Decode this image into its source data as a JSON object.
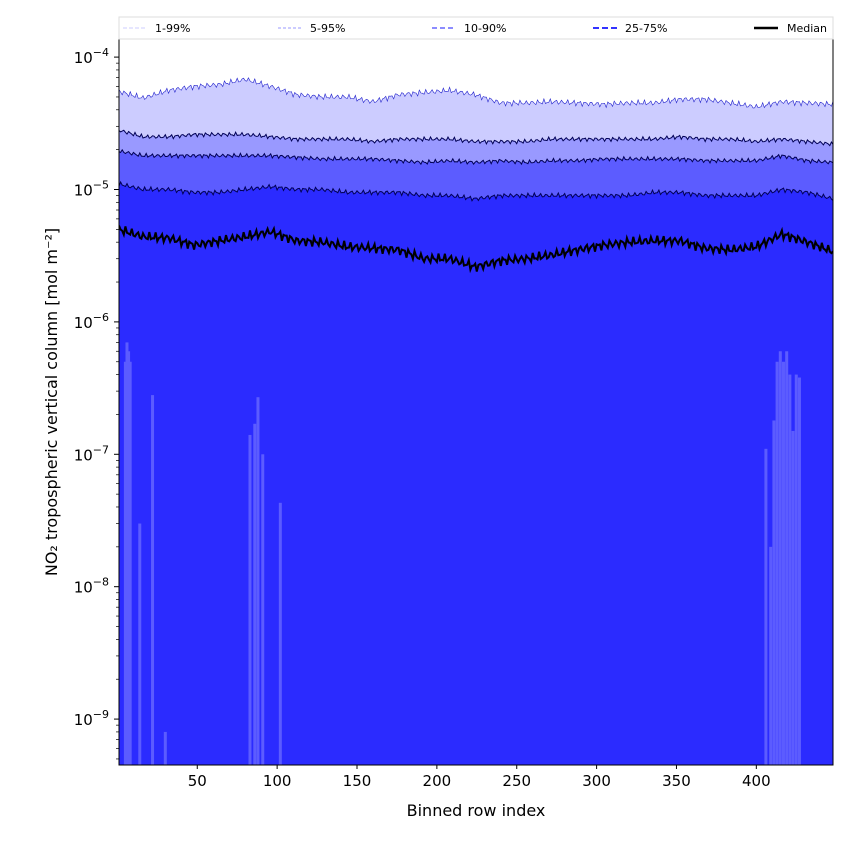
{
  "chart_data": {
    "type": "area",
    "title": "",
    "xlabel": "Binned row index",
    "ylabel": "NO₂ tropospheric vertical column [mol m⁻²]",
    "yscale": "log",
    "xlim": [
      1,
      448
    ],
    "ylim": [
      4.5e-10,
      0.000137
    ],
    "grid": false,
    "legend_placement": "top, above plot",
    "x_ticks": [
      50,
      100,
      150,
      200,
      250,
      300,
      350,
      400
    ],
    "y_ticks": [
      {
        "value": 0.0001,
        "base": "10",
        "exp": "−4"
      },
      {
        "value": 1e-05,
        "base": "10",
        "exp": "−5"
      },
      {
        "value": 1e-06,
        "base": "10",
        "exp": "−6"
      },
      {
        "value": 1e-07,
        "base": "10",
        "exp": "−7"
      },
      {
        "value": 1e-08,
        "base": "10",
        "exp": "−8"
      },
      {
        "value": 1e-09,
        "base": "10",
        "exp": "−9"
      }
    ],
    "legend": [
      {
        "label": "1-99%",
        "color": "#ccccff"
      },
      {
        "label": "5-95%",
        "color": "#9999ff"
      },
      {
        "label": "10-90%",
        "color": "#6666ff"
      },
      {
        "label": "25-75%",
        "color": "#3333ff"
      },
      {
        "label": "Median",
        "color": "#000000"
      }
    ],
    "x": [
      1,
      16,
      32,
      48,
      64,
      80,
      96,
      112,
      128,
      144,
      160,
      176,
      192,
      208,
      224,
      240,
      256,
      272,
      288,
      304,
      320,
      336,
      352,
      368,
      384,
      400,
      416,
      432,
      448
    ],
    "series": [
      {
        "name": "99th percentile",
        "band": "1-99%",
        "fill": "#ccccff",
        "values": [
          5.5e-05,
          4.9e-05,
          5.6e-05,
          6e-05,
          6.2e-05,
          6.8e-05,
          6e-05,
          5.2e-05,
          5e-05,
          5e-05,
          4.6e-05,
          5.2e-05,
          5.4e-05,
          5.6e-05,
          5.2e-05,
          4.5e-05,
          4.5e-05,
          4.6e-05,
          4.5e-05,
          4.4e-05,
          4.5e-05,
          4.5e-05,
          4.8e-05,
          4.8e-05,
          4.5e-05,
          4.2e-05,
          4.6e-05,
          4.5e-05,
          4.4e-05
        ]
      },
      {
        "name": "95th percentile",
        "band": "5-95%",
        "fill": "#9999ff",
        "values": [
          2.8e-05,
          2.5e-05,
          2.5e-05,
          2.6e-05,
          2.6e-05,
          2.6e-05,
          2.5e-05,
          2.4e-05,
          2.4e-05,
          2.4e-05,
          2.3e-05,
          2.4e-05,
          2.4e-05,
          2.4e-05,
          2.3e-05,
          2.3e-05,
          2.3e-05,
          2.4e-05,
          2.4e-05,
          2.4e-05,
          2.4e-05,
          2.4e-05,
          2.5e-05,
          2.4e-05,
          2.4e-05,
          2.3e-05,
          2.4e-05,
          2.3e-05,
          2.2e-05
        ]
      },
      {
        "name": "90th percentile",
        "band": "10-90%",
        "fill": "#5c5cff",
        "values": [
          1.95e-05,
          1.8e-05,
          1.8e-05,
          1.8e-05,
          1.8e-05,
          1.8e-05,
          1.8e-05,
          1.75e-05,
          1.7e-05,
          1.7e-05,
          1.7e-05,
          1.65e-05,
          1.6e-05,
          1.65e-05,
          1.6e-05,
          1.65e-05,
          1.6e-05,
          1.65e-05,
          1.65e-05,
          1.7e-05,
          1.7e-05,
          1.7e-05,
          1.7e-05,
          1.65e-05,
          1.65e-05,
          1.65e-05,
          1.8e-05,
          1.65e-05,
          1.6e-05
        ]
      },
      {
        "name": "75th percentile",
        "band": "25-75%",
        "fill": "#2b2bff",
        "values": [
          1.1e-05,
          1e-05,
          1e-05,
          9.5e-06,
          9.5e-06,
          1e-05,
          1.05e-05,
          1e-05,
          1e-05,
          9.5e-06,
          9.5e-06,
          9.5e-06,
          9e-06,
          9e-06,
          8.5e-06,
          9e-06,
          9e-06,
          9e-06,
          9e-06,
          9e-06,
          9e-06,
          9.5e-06,
          9.5e-06,
          9e-06,
          9e-06,
          9e-06,
          1e-05,
          9.5e-06,
          8.5e-06
        ]
      },
      {
        "name": "Median",
        "line": "#000000",
        "values": [
          5e-06,
          4.4e-06,
          4.3e-06,
          3.8e-06,
          4.1e-06,
          4.4e-06,
          4.8e-06,
          4.1e-06,
          4e-06,
          3.7e-06,
          3.6e-06,
          3.5e-06,
          3e-06,
          3e-06,
          2.6e-06,
          2.9e-06,
          3e-06,
          3.2e-06,
          3.5e-06,
          3.8e-06,
          4e-06,
          4.1e-06,
          4.1e-06,
          3.6e-06,
          3.5e-06,
          3.7e-06,
          4.6e-06,
          4e-06,
          3.4e-06
        ]
      }
    ],
    "lower_percentile_spikes": [
      {
        "x": 5,
        "value": 5e-07
      },
      {
        "x": 6,
        "value": 7e-07
      },
      {
        "x": 7,
        "value": 6e-07
      },
      {
        "x": 8,
        "value": 5e-07
      },
      {
        "x": 14,
        "value": 3e-08
      },
      {
        "x": 22,
        "value": 2.8e-07
      },
      {
        "x": 30,
        "value": 8e-10
      },
      {
        "x": 83,
        "value": 1.4e-07
      },
      {
        "x": 86,
        "value": 1.7e-07
      },
      {
        "x": 88,
        "value": 2.7e-07
      },
      {
        "x": 91,
        "value": 1e-07
      },
      {
        "x": 102,
        "value": 4.3e-08
      },
      {
        "x": 406,
        "value": 1.1e-07
      },
      {
        "x": 409,
        "value": 2e-08
      },
      {
        "x": 411,
        "value": 1.8e-07
      },
      {
        "x": 413,
        "value": 5e-07
      },
      {
        "x": 415,
        "value": 6e-07
      },
      {
        "x": 417,
        "value": 5e-07
      },
      {
        "x": 419,
        "value": 6e-07
      },
      {
        "x": 421,
        "value": 4e-07
      },
      {
        "x": 423,
        "value": 1.5e-07
      },
      {
        "x": 425,
        "value": 4e-07
      },
      {
        "x": 427,
        "value": 3.8e-07
      }
    ]
  }
}
